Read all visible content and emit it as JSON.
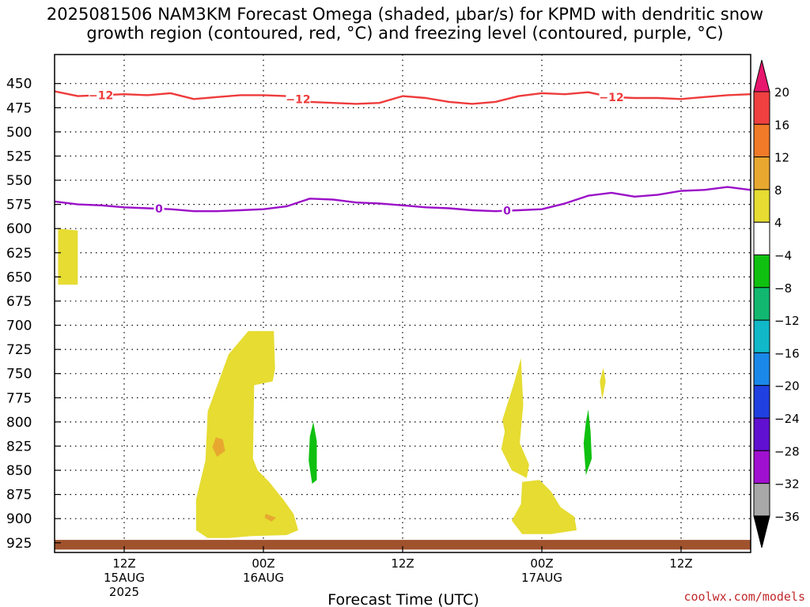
{
  "title_line1": "2025081506 NAM3KM Forecast Omega (shaded, μbar/s) for KPMD with dendritic snow",
  "title_line2": "growth region (contoured, red, °C) and freezing level (contoured, purple, °C)",
  "credit": "coolwx.com/models",
  "chart_data": {
    "type": "time-height",
    "xlabel": "Forecast Time (UTC)",
    "x_range_hours": [
      0,
      60
    ],
    "x_ticks": [
      {
        "hour": 6,
        "lines": [
          "12Z",
          "15AUG",
          "2025"
        ]
      },
      {
        "hour": 18,
        "lines": [
          "00Z",
          "16AUG"
        ]
      },
      {
        "hour": 30,
        "lines": [
          "12Z"
        ]
      },
      {
        "hour": 42,
        "lines": [
          "00Z",
          "17AUG"
        ]
      },
      {
        "hour": 54,
        "lines": [
          "12Z"
        ]
      }
    ],
    "ylabel": "Pressure (hPa)",
    "y_range": [
      420,
      935
    ],
    "y_ticks": [
      450,
      475,
      500,
      525,
      550,
      575,
      600,
      625,
      650,
      675,
      700,
      725,
      750,
      775,
      800,
      825,
      850,
      875,
      900,
      925
    ],
    "grid": true,
    "colorbar": {
      "labels": [
        "20",
        "16",
        "12",
        "8",
        "4",
        "−4",
        "−8",
        "−12",
        "−16",
        "−20",
        "−24",
        "−28",
        "−32",
        "−36"
      ],
      "colors": [
        "#e8176e",
        "#f04040",
        "#f07a28",
        "#e8a830",
        "#e6dc32",
        "#ffffff",
        "#10c010",
        "#12b870",
        "#10b8c8",
        "#1a88e8",
        "#2040e0",
        "#6010d0",
        "#a010d0",
        "#a8a8a8",
        "#000000"
      ]
    },
    "contours": [
      {
        "value": -12,
        "label": "−12",
        "color": "#ee3b3b",
        "x": [
          0,
          2,
          4,
          6,
          8,
          10,
          12,
          14,
          16,
          18,
          20,
          22,
          24,
          26,
          28,
          30,
          32,
          34,
          36,
          38,
          40,
          42,
          44,
          46,
          48,
          50,
          52,
          54,
          56,
          58,
          60
        ],
        "y": [
          458,
          463,
          462,
          461,
          462,
          460,
          466,
          464,
          462,
          462,
          463,
          469,
          470,
          471,
          470,
          463,
          465,
          469,
          471,
          469,
          463,
          460,
          461,
          459,
          464,
          465,
          465,
          466,
          464,
          462,
          461
        ],
        "label_hours": [
          4,
          21,
          48
        ]
      },
      {
        "value": 0,
        "label": "0",
        "color": "#9b10c8",
        "x": [
          0,
          2,
          4,
          6,
          8,
          10,
          12,
          14,
          16,
          18,
          20,
          22,
          24,
          26,
          28,
          30,
          32,
          34,
          36,
          38,
          40,
          42,
          44,
          46,
          48,
          50,
          52,
          54,
          56,
          58,
          60
        ],
        "y": [
          572,
          575,
          576,
          578,
          579,
          580,
          582,
          582,
          581,
          580,
          577,
          569,
          570,
          573,
          574,
          576,
          578,
          579,
          581,
          582,
          581,
          580,
          574,
          566,
          563,
          567,
          565,
          561,
          560,
          557,
          560
        ],
        "label_hours": [
          9,
          39
        ]
      }
    ],
    "shaded_regions": [
      {
        "omega": "4 to 8",
        "color": "#e6dc32",
        "x": [
          0.3,
          2.0,
          2.0,
          0.3
        ],
        "y": [
          600,
          602,
          658,
          658
        ]
      },
      {
        "omega": "4 to 8",
        "color": "#e6dc32",
        "x": [
          13.2,
          15.0,
          16.7,
          18.9,
          19.0,
          18.8,
          17.2,
          17.1,
          17.5,
          18.5,
          19.7,
          20.6,
          21.0,
          20.0,
          17.0,
          15.0,
          13.2,
          12.2,
          12.2,
          13.0
        ],
        "y": [
          789,
          730,
          706,
          706,
          745,
          758,
          762,
          838,
          850,
          862,
          880,
          895,
          912,
          917,
          918,
          920,
          920,
          912,
          880,
          840
        ]
      },
      {
        "omega": "4 to 8",
        "color": "#e6dc32",
        "x": [
          38.6,
          39.6,
          40.2,
          40.4,
          40.1,
          40.9,
          40.7,
          39.4,
          38.5,
          38.8
        ],
        "y": [
          798,
          760,
          734,
          782,
          822,
          844,
          858,
          850,
          828,
          810
        ]
      },
      {
        "omega": "4 to 8",
        "color": "#e6dc32",
        "x": [
          40.3,
          41.8,
          42.8,
          43.6,
          44.8,
          45.0,
          42.8,
          40.3,
          39.4,
          40.2
        ],
        "y": [
          862,
          860,
          872,
          888,
          898,
          912,
          916,
          916,
          902,
          885
        ]
      },
      {
        "omega": "4 to 8",
        "color": "#e6dc32",
        "x": [
          47.3,
          47.5,
          47.2,
          47.0
        ],
        "y": [
          744,
          758,
          777,
          758
        ]
      },
      {
        "omega": "8 to 12",
        "color": "#e8a830",
        "x": [
          13.9,
          14.5,
          14.7,
          14.0,
          13.6
        ],
        "y": [
          816,
          818,
          830,
          836,
          826
        ]
      },
      {
        "omega": "8 to 12",
        "color": "#e8a830",
        "x": [
          18.2,
          19.1,
          18.7,
          18.1
        ],
        "y": [
          895,
          899,
          903,
          899
        ]
      },
      {
        "omega": "-4 to -8",
        "color": "#10c010",
        "x": [
          22.3,
          22.6,
          22.6,
          22.2,
          21.9,
          22.0
        ],
        "y": [
          800,
          820,
          860,
          864,
          840,
          815
        ]
      },
      {
        "omega": "-4 to -8",
        "color": "#10c010",
        "x": [
          46.0,
          46.2,
          46.3,
          45.8,
          45.6,
          45.8
        ],
        "y": [
          787,
          810,
          838,
          855,
          822,
          800
        ]
      }
    ],
    "terrain": {
      "color": "#a0522d",
      "top_hpa": 922,
      "bottom_hpa": 932
    }
  }
}
